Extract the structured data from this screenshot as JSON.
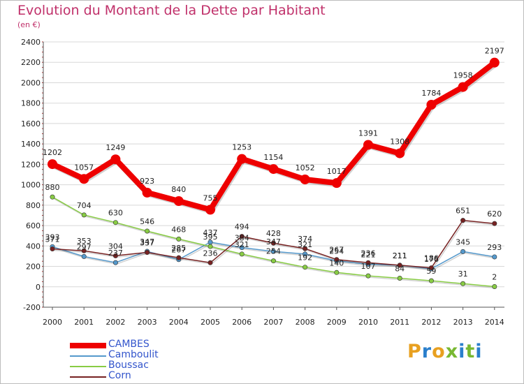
{
  "title": "Evolution du Montant de la Dette par Habitant",
  "subtitle": "(en €)",
  "logo": "Proxiti",
  "colors": {
    "title": "#c0306a",
    "grid": "#d8d8d8",
    "axis": "#555555",
    "legend_text": "#3355cc",
    "logo_letters": [
      "#e8a020",
      "#2a7fcc",
      "#e8a020",
      "#78b832",
      "#2a7fcc",
      "#78b832",
      "#2a7fcc"
    ]
  },
  "chart_data": {
    "type": "line",
    "x": [
      "2000",
      "2001",
      "2002",
      "2003",
      "2004",
      "2005",
      "2006",
      "2007",
      "2008",
      "2009",
      "2010",
      "2011",
      "2012",
      "2013",
      "2014"
    ],
    "ylim": [
      -200,
      2400
    ],
    "yticks": [
      "-200",
      "0",
      "200",
      "400",
      "600",
      "800",
      "1000",
      "1200",
      "1400",
      "1600",
      "1800",
      "2000",
      "2200",
      "2400"
    ],
    "grid": "horizontal",
    "legend_position": "bottom-left",
    "series": [
      {
        "name": "CAMBES",
        "color": "#ee0000",
        "line_width": 8,
        "marker_radius": 7,
        "values": [
          1202,
          1057,
          1249,
          923,
          840,
          755,
          1253,
          1154,
          1052,
          1017,
          1391,
          1308,
          1784,
          1958,
          2197
        ],
        "labels": [
          "1202",
          "1057",
          "1249",
          "923",
          "840",
          "755",
          "1253",
          "1154",
          "1052",
          "1017",
          "1391",
          "1308",
          "1784",
          "1958",
          "2197"
        ]
      },
      {
        "name": "Camboulit",
        "color": "#5599cc",
        "line_width": 1.5,
        "marker_radius": 3.2,
        "values": [
          393,
          297,
          237,
          347,
          267,
          437,
          384,
          347,
          321,
          254,
          221,
          211,
          176,
          345,
          293
        ],
        "labels": [
          "393",
          "297",
          "237",
          "347",
          "267",
          "437",
          "384",
          "347",
          "321",
          "254",
          "221",
          "211",
          "176",
          "345",
          "293"
        ]
      },
      {
        "name": "Boussac",
        "color": "#88cc44",
        "line_width": 1.5,
        "marker_radius": 3.2,
        "values": [
          880,
          704,
          630,
          546,
          468,
          395,
          321,
          254,
          192,
          140,
          107,
          84,
          59,
          31,
          2
        ],
        "labels": [
          "880",
          "704",
          "630",
          "546",
          "468",
          "395",
          "321",
          "254",
          "192",
          "140",
          "107",
          "84",
          "59",
          "31",
          "2"
        ]
      },
      {
        "name": "Corn",
        "color": "#772222",
        "line_width": 1.5,
        "marker_radius": 3.2,
        "values": [
          371,
          353,
          304,
          337,
          285,
          236,
          494,
          428,
          374,
          267,
          236,
          211,
          186,
          651,
          620
        ],
        "labels": [
          "371",
          "353",
          "304",
          "337",
          "285",
          "236",
          "494",
          "428",
          "374",
          "267",
          "236",
          "211",
          "186",
          "651",
          "620"
        ]
      }
    ]
  }
}
